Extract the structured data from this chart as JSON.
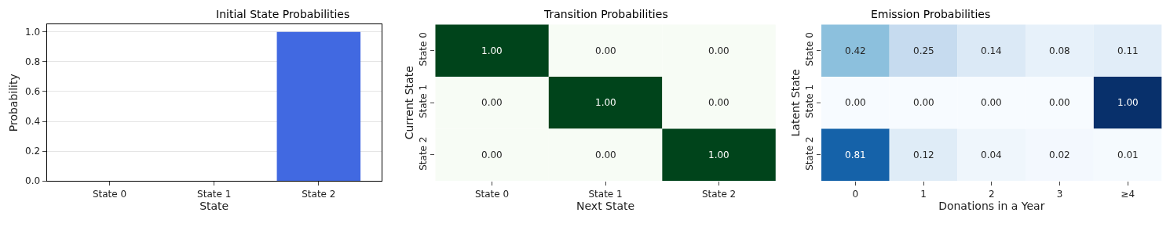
{
  "chart_data": [
    {
      "type": "bar",
      "title": "Initial State Probabilities",
      "xlabel": "State",
      "ylabel": "Probability",
      "categories": [
        "State 0",
        "State 1",
        "State 2"
      ],
      "values": [
        0,
        0,
        1
      ],
      "color": "#4169e1",
      "ylim": [
        0,
        1.05
      ],
      "yticks": [
        {
          "value": 0,
          "label": "0.0"
        },
        {
          "value": 0.2,
          "label": "0.2"
        },
        {
          "value": 0.4,
          "label": "0.4"
        },
        {
          "value": 0.6,
          "label": "0.6"
        },
        {
          "value": 0.8,
          "label": "0.8"
        },
        {
          "value": 1,
          "label": "1.0"
        }
      ],
      "grid": "y"
    },
    {
      "type": "heatmap",
      "title": "Transition Probabilities",
      "xlabel": "Next State",
      "ylabel": "Current State",
      "categories": [
        "State 0",
        "State 1",
        "State 2"
      ],
      "y_categories": [
        "State 0",
        "State 1",
        "State 2"
      ],
      "cells": [
        [
          1,
          0,
          0
        ],
        [
          0,
          1,
          0
        ],
        [
          0,
          0,
          1
        ]
      ],
      "cell_labels": [
        [
          "1.00",
          "0.00",
          "0.00"
        ],
        [
          "0.00",
          "1.00",
          "0.00"
        ],
        [
          "0.00",
          "0.00",
          "1.00"
        ]
      ],
      "color": "#00441b"
    },
    {
      "type": "heatmap",
      "title": "Emission Probabilities",
      "xlabel": "Donations in a Year",
      "ylabel": "Latent State",
      "categories": [
        "0",
        "1",
        "2",
        "3",
        "≥4"
      ],
      "y_categories": [
        "State 0",
        "State 1",
        "State 2"
      ],
      "cells": [
        [
          0.42,
          0.25,
          0.14,
          0.08,
          0.11
        ],
        [
          0,
          0,
          0,
          0,
          1
        ],
        [
          0.81,
          0.12,
          0.04,
          0.02,
          0.01
        ]
      ],
      "cell_labels": [
        [
          "0.42",
          "0.25",
          "0.14",
          "0.08",
          "0.11"
        ],
        [
          "0.00",
          "0.00",
          "0.00",
          "0.00",
          "1.00"
        ],
        [
          "0.81",
          "0.12",
          "0.04",
          "0.02",
          "0.01"
        ]
      ],
      "color": "#08306b"
    }
  ]
}
